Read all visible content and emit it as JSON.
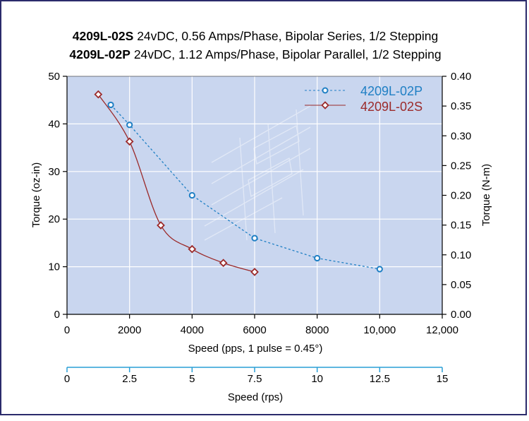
{
  "title": {
    "line1_model": "4209L-02S",
    "line1_text": " 24vDC, 0.56 Amps/Phase, Bipolar Series, 1/2 Stepping",
    "line2_model": "4209L-02P",
    "line2_text": " 24vDC, 1.12 Amps/Phase, Bipolar Parallel, 1/2 Stepping"
  },
  "colors": {
    "plot_bg": "#c9d6ef",
    "series_p": "#1f7fc4",
    "series_s": "#9b2a2a",
    "axis": "#000000",
    "rps_axis": "#2a9fd6",
    "border": "#2b2b6b"
  },
  "chart_data": {
    "type": "line",
    "xlabel": "Speed (pps, 1 pulse = 0.45°)",
    "ylabel": "Torque (oz-in)",
    "y2label": "Torque (N-m)",
    "x2label": "Speed (rps)",
    "xlim": [
      0,
      12000
    ],
    "ylim": [
      0,
      50
    ],
    "y2lim": [
      0,
      0.4
    ],
    "x2lim": [
      0,
      15
    ],
    "x_ticks": [
      "0",
      "2000",
      "4000",
      "6000",
      "8000",
      "10,000",
      "12,000"
    ],
    "x_tick_values": [
      0,
      2000,
      4000,
      6000,
      8000,
      10000,
      12000
    ],
    "y_ticks": [
      "0",
      "10",
      "20",
      "30",
      "40",
      "50"
    ],
    "y_tick_values": [
      0,
      10,
      20,
      30,
      40,
      50
    ],
    "y2_ticks": [
      "0.00",
      "0.05",
      "0.10",
      "0.15",
      "0.20",
      "0.25",
      "0.30",
      "0.35",
      "0.40"
    ],
    "y2_tick_values": [
      0,
      0.05,
      0.1,
      0.15,
      0.2,
      0.25,
      0.3,
      0.35,
      0.4
    ],
    "x2_ticks": [
      "0",
      "2.5",
      "5",
      "7.5",
      "10",
      "12.5",
      "15"
    ],
    "x2_tick_values": [
      0,
      2.5,
      5,
      7.5,
      10,
      12.5,
      15
    ],
    "grid": true,
    "legend_position": "top-right",
    "series": [
      {
        "name": "4209L-02P",
        "style": "dashed",
        "marker": "circle",
        "x": [
          1400,
          2000,
          4000,
          6000,
          8000,
          10000
        ],
        "y": [
          44,
          39.8,
          25,
          16,
          11.8,
          9.5
        ]
      },
      {
        "name": "4209L-02S",
        "style": "solid",
        "marker": "diamond",
        "x": [
          1000,
          2000,
          3000,
          4000,
          5000,
          6000
        ],
        "y": [
          46.2,
          36.3,
          18.7,
          13.7,
          10.8,
          8.9
        ]
      }
    ]
  }
}
